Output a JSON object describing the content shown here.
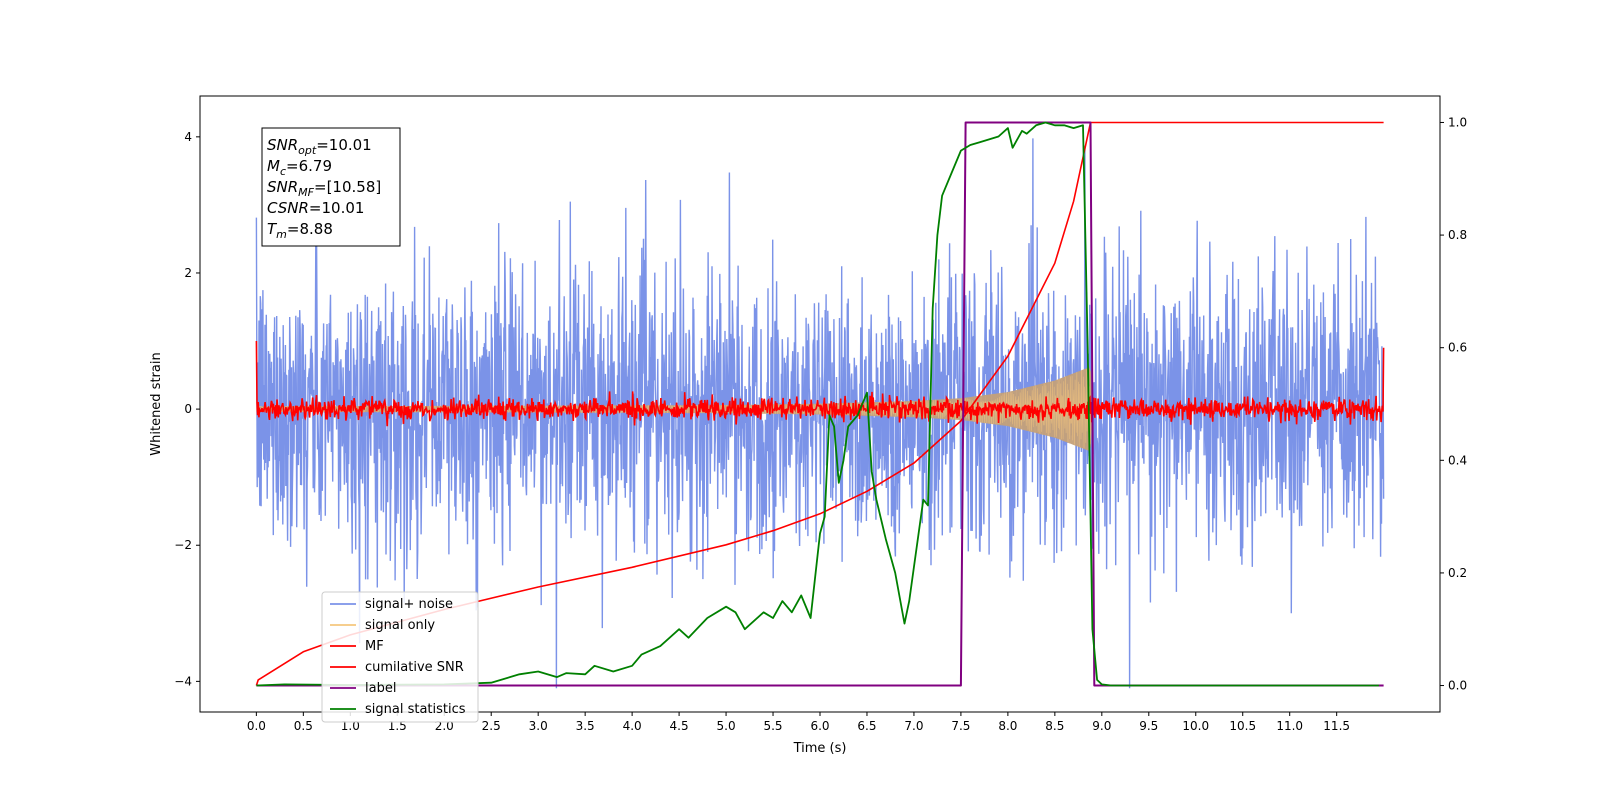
{
  "chart_data": {
    "type": "line",
    "xlabel": "Time (s)",
    "ylabel": "Whitened strain",
    "xlim": [
      -0.6,
      12.6
    ],
    "ylim_left": [
      -4.45,
      4.6
    ],
    "ylim_right": [
      -0.047,
      1.047
    ],
    "x_ticks": [
      "0.0",
      "0.5",
      "1.0",
      "1.5",
      "2.0",
      "2.5",
      "3.0",
      "3.5",
      "4.0",
      "4.5",
      "5.0",
      "5.5",
      "6.0",
      "6.5",
      "7.0",
      "7.5",
      "8.0",
      "8.5",
      "9.0",
      "9.5",
      "10.0",
      "10.5",
      "11.0",
      "11.5"
    ],
    "y_ticks_left": [
      "4",
      "2",
      "0",
      "−2",
      "−4"
    ],
    "y_ticks_right": [
      "1.0",
      "0.8",
      "0.6",
      "0.4",
      "0.2",
      "0.0"
    ],
    "grid": false,
    "legend_position": "lower-left",
    "annotation": {
      "lines": [
        {
          "base": "SNR",
          "sub": "opt",
          "value": "=10.01"
        },
        {
          "base": "M",
          "sub": "c",
          "value": "=6.79"
        },
        {
          "base": "SNR",
          "sub": "MF",
          "value": "=[10.58]"
        },
        {
          "base": "CSNR",
          "sub": "",
          "value": "=10.01"
        },
        {
          "base": "T",
          "sub": "m",
          "value": "=8.88"
        }
      ]
    },
    "series": [
      {
        "name": "signal+ noise",
        "color": "#7b93e8",
        "axis": "left",
        "kind": "noise",
        "x_range": [
          0.0,
          12.0
        ],
        "amplitude_typical": 1.3,
        "amplitude_peak": 4.1
      },
      {
        "name": "signal only",
        "color": "#f5c77e",
        "axis": "left",
        "kind": "chirp",
        "fill_color": "#c4a079",
        "envelope": {
          "x": [
            0.0,
            3.0,
            5.0,
            6.0,
            7.0,
            7.5,
            8.0,
            8.5,
            8.8,
            8.88,
            8.9
          ],
          "amp": [
            0.04,
            0.05,
            0.06,
            0.08,
            0.12,
            0.16,
            0.25,
            0.42,
            0.58,
            0.62,
            0.0
          ]
        }
      },
      {
        "name": "MF",
        "color": "#ff0000",
        "axis": "left",
        "kind": "noise",
        "x_range": [
          0.0,
          12.0
        ],
        "amplitude_typical": 0.08,
        "amplitude_peak": 0.28,
        "start_value": 1.0,
        "end_value": 0.9
      },
      {
        "name": "cumilative SNR",
        "color": "#ff0000",
        "axis": "right",
        "x": [
          0.0,
          0.02,
          0.5,
          1.0,
          2.0,
          3.0,
          4.0,
          5.0,
          5.5,
          6.0,
          6.5,
          7.0,
          7.5,
          8.0,
          8.5,
          8.7,
          8.88,
          8.9,
          12.0
        ],
        "y": [
          0.0,
          0.01,
          0.06,
          0.09,
          0.135,
          0.175,
          0.21,
          0.25,
          0.275,
          0.305,
          0.345,
          0.395,
          0.47,
          0.585,
          0.75,
          0.86,
          1.0,
          1.0,
          1.0
        ]
      },
      {
        "name": "label",
        "color": "#800080",
        "axis": "right",
        "x": [
          0.0,
          7.5,
          7.55,
          8.88,
          8.92,
          12.0
        ],
        "y": [
          0.0,
          0.0,
          1.0,
          1.0,
          0.0,
          0.0
        ]
      },
      {
        "name": "signal statistics",
        "color": "#008000",
        "axis": "right",
        "x": [
          0.0,
          0.3,
          1.0,
          2.0,
          2.5,
          2.8,
          3.0,
          3.2,
          3.3,
          3.5,
          3.6,
          3.8,
          4.0,
          4.1,
          4.3,
          4.5,
          4.6,
          4.8,
          5.0,
          5.1,
          5.2,
          5.4,
          5.5,
          5.6,
          5.7,
          5.8,
          5.9,
          6.0,
          6.05,
          6.1,
          6.15,
          6.2,
          6.25,
          6.3,
          6.4,
          6.5,
          6.55,
          6.6,
          6.7,
          6.8,
          6.9,
          6.95,
          7.0,
          7.1,
          7.15,
          7.2,
          7.25,
          7.3,
          7.4,
          7.5,
          7.6,
          7.7,
          7.8,
          7.9,
          8.0,
          8.05,
          8.15,
          8.2,
          8.3,
          8.4,
          8.5,
          8.6,
          8.7,
          8.8,
          8.85,
          8.9,
          8.95,
          9.0,
          9.1,
          9.5,
          10.0,
          11.0,
          11.95
        ],
        "y": [
          0.0,
          0.002,
          0.001,
          0.002,
          0.005,
          0.02,
          0.025,
          0.015,
          0.022,
          0.02,
          0.035,
          0.025,
          0.035,
          0.055,
          0.07,
          0.1,
          0.085,
          0.12,
          0.14,
          0.13,
          0.1,
          0.13,
          0.12,
          0.15,
          0.13,
          0.16,
          0.12,
          0.27,
          0.3,
          0.48,
          0.46,
          0.36,
          0.4,
          0.46,
          0.48,
          0.52,
          0.38,
          0.33,
          0.26,
          0.2,
          0.11,
          0.15,
          0.21,
          0.33,
          0.32,
          0.67,
          0.8,
          0.87,
          0.91,
          0.95,
          0.96,
          0.965,
          0.97,
          0.975,
          0.99,
          0.955,
          0.985,
          0.98,
          0.995,
          1.0,
          0.995,
          0.995,
          0.99,
          0.995,
          0.6,
          0.1,
          0.01,
          0.002,
          0.0,
          0.0,
          0.0,
          0.0,
          0.0
        ]
      }
    ]
  }
}
